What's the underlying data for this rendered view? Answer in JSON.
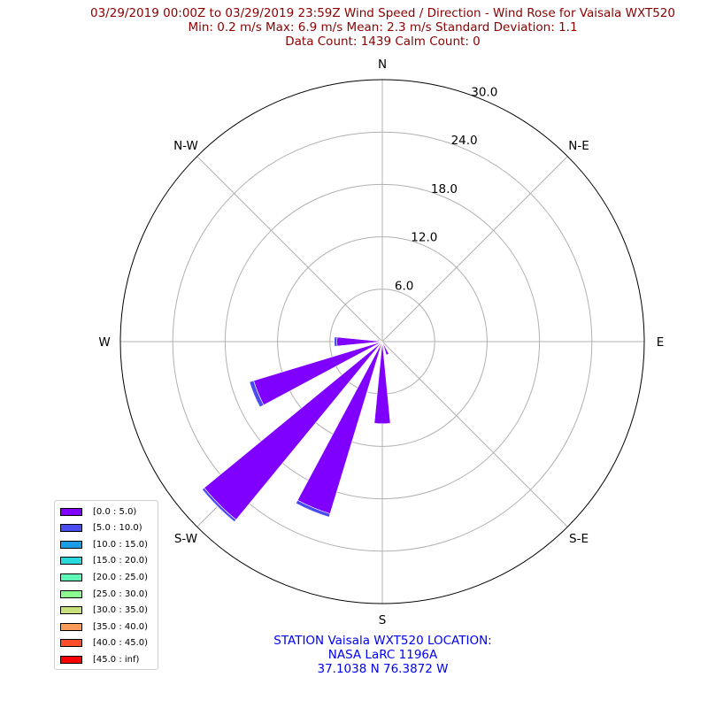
{
  "title": {
    "line1": "03/29/2019 00:00Z to 03/29/2019 23:59Z Wind Speed / Direction - Wind Rose for Vaisala WXT520",
    "line2": "Min: 0.2 m/s   Max: 6.9 m/s   Mean: 2.3 m/s  Standard Deviation: 1.1",
    "line3": "Data Count: 1439  Calm Count:  0"
  },
  "station": {
    "line1": "STATION Vaisala WXT520 LOCATION:",
    "line2": "NASA LaRC 1196A",
    "line3": "37.1038 N 76.3872 W"
  },
  "colors": {
    "title": "#8b0000",
    "station": "#0000ee",
    "grid": "#b0b0b0",
    "frame": "#000000"
  },
  "chart_data": {
    "type": "windrose",
    "rmax": 30.0,
    "radial_ticks": [
      6.0,
      12.0,
      18.0,
      24.0,
      30.0
    ],
    "radial_tick_labels": [
      "6.0",
      "12.0",
      "18.0",
      "24.0",
      "30.0"
    ],
    "direction_labels": [
      {
        "label": "N",
        "angle": 0
      },
      {
        "label": "N-E",
        "angle": 45
      },
      {
        "label": "E",
        "angle": 90
      },
      {
        "label": "S-E",
        "angle": 135
      },
      {
        "label": "S",
        "angle": 180
      },
      {
        "label": "S-W",
        "angle": 225
      },
      {
        "label": "W",
        "angle": 270
      },
      {
        "label": "N-W",
        "angle": 315
      }
    ],
    "legend": [
      {
        "label": "[0.0 : 5.0)",
        "color": "#7f00ff"
      },
      {
        "label": "[5.0 : 10.0)",
        "color": "#4a4cf2"
      },
      {
        "label": "[10.0 : 15.0)",
        "color": "#1a9ce6"
      },
      {
        "label": "[15.0 : 20.0)",
        "color": "#2ad9dd"
      },
      {
        "label": "[20.0 : 25.0)",
        "color": "#5ef7b5"
      },
      {
        "label": "[25.0 : 30.0)",
        "color": "#8dfd92"
      },
      {
        "label": "[30.0 : 35.0)",
        "color": "#c8e07a"
      },
      {
        "label": "[35.0 : 40.0)",
        "color": "#ff9b5a"
      },
      {
        "label": "[40.0 : 45.0)",
        "color": "#ff4f2a"
      },
      {
        "label": "[45.0 : inf)",
        "color": "#ff0000"
      }
    ],
    "sector_width_deg": 11.25,
    "bars": [
      {
        "direction_deg": 157.5,
        "segments": [
          1.6,
          0
        ]
      },
      {
        "direction_deg": 180,
        "segments": [
          9.4,
          0
        ]
      },
      {
        "direction_deg": 202.5,
        "segments": [
          20.6,
          0.4
        ]
      },
      {
        "direction_deg": 225,
        "segments": [
          26.4,
          0.3
        ]
      },
      {
        "direction_deg": 247.5,
        "segments": [
          15.4,
          0.5
        ]
      },
      {
        "direction_deg": 270,
        "segments": [
          5.2,
          0.3
        ]
      },
      {
        "direction_deg": 292.5,
        "segments": [
          0.6,
          0
        ]
      }
    ]
  }
}
